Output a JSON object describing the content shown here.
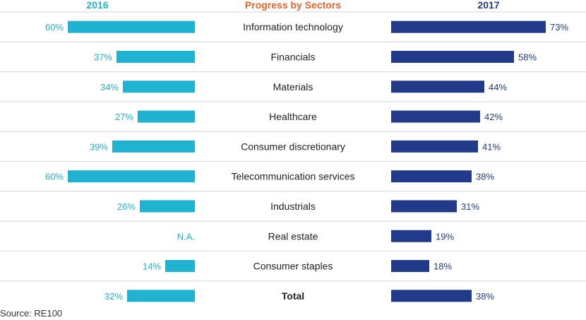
{
  "chart_data": {
    "type": "bar",
    "title": "Progress by Sectors",
    "series": [
      {
        "name": "2016",
        "color": "#1fb3d1",
        "values": [
          60,
          37,
          34,
          27,
          39,
          60,
          26,
          null,
          14,
          32
        ],
        "labels": [
          "60%",
          "37%",
          "34%",
          "27%",
          "39%",
          "60%",
          "26%",
          "N.A.",
          "14%",
          "32%"
        ]
      },
      {
        "name": "2017",
        "color": "#223a8a",
        "values": [
          73,
          58,
          44,
          42,
          41,
          38,
          31,
          19,
          18,
          38
        ],
        "labels": [
          "73%",
          "58%",
          "44%",
          "42%",
          "41%",
          "38%",
          "31%",
          "19%",
          "18%",
          "38%"
        ]
      }
    ],
    "categories": [
      "Information technology",
      "Financials",
      "Materials",
      "Healthcare",
      "Consumer discretionary",
      "Telecommunication services",
      "Industrials",
      "Real estate",
      "Consumer staples",
      "Total"
    ],
    "bold_category": "Total",
    "title_color": "#e8622a",
    "xlim": [
      0,
      100
    ],
    "grid": false
  },
  "source": "Source: RE100"
}
